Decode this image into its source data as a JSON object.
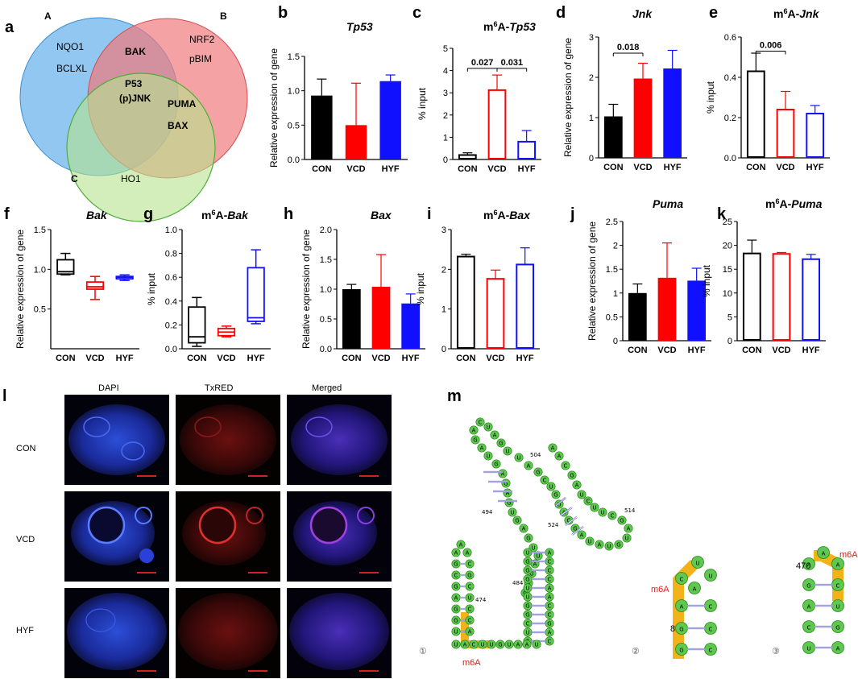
{
  "panel_letters": {
    "a": "a",
    "b": "b",
    "c": "c",
    "d": "d",
    "e": "e",
    "f": "f",
    "g": "g",
    "h": "h",
    "i": "i",
    "j": "j",
    "k": "k",
    "l": "l",
    "m": "m"
  },
  "venn": {
    "set_labels": {
      "A": "A",
      "B": "B",
      "C": "C"
    },
    "only_A": [
      "NQO1",
      "BCLXL"
    ],
    "only_B": [
      "NRF2",
      "pBIM"
    ],
    "A_and_B": "BAK",
    "A_B_C": [
      "P53",
      "(p)JNK"
    ],
    "B_and_C": [
      "PUMA",
      "BAX"
    ],
    "only_C": "HO1",
    "colors": {
      "A": "#6cb4ec",
      "B": "#f07a7e",
      "C": "#b6e28d"
    }
  },
  "group_colors": {
    "CON": "#000000",
    "VCD": "#ff0000",
    "HYF": "#1010ff"
  },
  "chart_data": [
    {
      "id": "b",
      "type": "bar",
      "title": "Tp53",
      "title_prefix": "",
      "ylabel": "Relative expression of gene",
      "categories": [
        "CON",
        "VCD",
        "HYF"
      ],
      "values": [
        0.93,
        0.5,
        1.14
      ],
      "errors": [
        0.24,
        0.61,
        0.09
      ],
      "filled": true,
      "ylim": [
        0,
        1.5
      ],
      "yticks": [
        0.0,
        0.5,
        1.0,
        1.5
      ],
      "sig": []
    },
    {
      "id": "c",
      "type": "bar",
      "title": "Tp53",
      "title_prefix": "m6A-",
      "ylabel": "% input",
      "categories": [
        "CON",
        "VCD",
        "HYF"
      ],
      "values": [
        0.2,
        3.12,
        0.8
      ],
      "errors": [
        0.1,
        0.68,
        0.5
      ],
      "filled": false,
      "ylim": [
        0,
        5
      ],
      "yticks": [
        0,
        1,
        2,
        3,
        4,
        5
      ],
      "sig": [
        {
          "from": 0,
          "to": 1,
          "text": "0.027"
        },
        {
          "from": 1,
          "to": 2,
          "text": "0.031"
        }
      ]
    },
    {
      "id": "d",
      "type": "bar",
      "title": "Jnk",
      "title_prefix": "",
      "ylabel": "Relative expression of gene",
      "categories": [
        "CON",
        "VCD",
        "HYF"
      ],
      "values": [
        1.03,
        1.97,
        2.22
      ],
      "errors": [
        0.3,
        0.38,
        0.45
      ],
      "filled": true,
      "ylim": [
        0,
        3
      ],
      "yticks": [
        0,
        1,
        2,
        3
      ],
      "sig": [
        {
          "from": 0,
          "to": 1,
          "text": "0.018"
        }
      ]
    },
    {
      "id": "e",
      "type": "bar",
      "title": "Jnk",
      "title_prefix": "m6A-",
      "ylabel": "% input",
      "categories": [
        "CON",
        "VCD",
        "HYF"
      ],
      "values": [
        0.43,
        0.24,
        0.22
      ],
      "errors": [
        0.09,
        0.09,
        0.04
      ],
      "filled": false,
      "ylim": [
        0,
        0.6
      ],
      "yticks": [
        0.0,
        0.2,
        0.4,
        0.6
      ],
      "sig": [
        {
          "from": 0,
          "to": 1,
          "text": "0.006"
        }
      ]
    },
    {
      "id": "f",
      "type": "box",
      "title": "Bak",
      "title_prefix": "",
      "ylabel": "Relative expression of gene",
      "categories": [
        "CON",
        "VCD",
        "HYF"
      ],
      "boxes": [
        {
          "min": 0.93,
          "q1": 0.94,
          "median": 0.97,
          "q3": 1.12,
          "max": 1.2
        },
        {
          "min": 0.62,
          "q1": 0.75,
          "median": 0.78,
          "q3": 0.84,
          "max": 0.91
        },
        {
          "min": 0.86,
          "q1": 0.88,
          "median": 0.9,
          "q3": 0.91,
          "max": 0.93
        }
      ],
      "ylim": [
        0.0,
        1.5
      ],
      "yticks": [
        0.5,
        1.0,
        1.5
      ],
      "sig": []
    },
    {
      "id": "g",
      "type": "box",
      "title": "Bak",
      "title_prefix": "m6A-",
      "ylabel": "% input",
      "categories": [
        "CON",
        "VCD",
        "HYF"
      ],
      "boxes": [
        {
          "min": 0.02,
          "q1": 0.05,
          "median": 0.1,
          "q3": 0.35,
          "max": 0.43
        },
        {
          "min": 0.1,
          "q1": 0.11,
          "median": 0.14,
          "q3": 0.17,
          "max": 0.19
        },
        {
          "min": 0.21,
          "q1": 0.23,
          "median": 0.26,
          "q3": 0.68,
          "max": 0.83
        }
      ],
      "ylim": [
        0,
        1.0
      ],
      "yticks": [
        0.0,
        0.2,
        0.4,
        0.6,
        0.8,
        1.0
      ],
      "sig": []
    },
    {
      "id": "h",
      "type": "bar",
      "title": "Bax",
      "title_prefix": "",
      "ylabel": "Relative expression of gene",
      "categories": [
        "CON",
        "VCD",
        "HYF"
      ],
      "values": [
        1.0,
        1.04,
        0.76
      ],
      "errors": [
        0.08,
        0.54,
        0.16
      ],
      "filled": true,
      "ylim": [
        0,
        2.0
      ],
      "yticks": [
        0.0,
        0.5,
        1.0,
        1.5,
        2.0
      ],
      "sig": []
    },
    {
      "id": "i",
      "type": "bar",
      "title": "Bax",
      "title_prefix": "m6A-",
      "ylabel": "% input",
      "categories": [
        "CON",
        "VCD",
        "HYF"
      ],
      "values": [
        2.32,
        1.76,
        2.12
      ],
      "errors": [
        0.06,
        0.22,
        0.42
      ],
      "filled": false,
      "ylim": [
        0,
        3
      ],
      "yticks": [
        0,
        1,
        2,
        3
      ],
      "sig": []
    },
    {
      "id": "j",
      "type": "bar",
      "title": "Puma",
      "title_prefix": "",
      "ylabel": "Relative expression of gene",
      "categories": [
        "CON",
        "VCD",
        "HYF"
      ],
      "values": [
        1.0,
        1.32,
        1.26
      ],
      "errors": [
        0.19,
        0.73,
        0.26
      ],
      "filled": true,
      "ylim": [
        0,
        2.5
      ],
      "yticks": [
        0.0,
        0.5,
        1.0,
        1.5,
        2.0,
        2.5
      ],
      "sig": []
    },
    {
      "id": "k",
      "type": "bar",
      "title": "Puma",
      "title_prefix": "m6A-",
      "ylabel": "% input",
      "categories": [
        "CON",
        "VCD",
        "HYF"
      ],
      "values": [
        18.3,
        18.2,
        17.1
      ],
      "errors": [
        2.8,
        0.3,
        1.0
      ],
      "filled": false,
      "ylim": [
        0,
        25
      ],
      "yticks": [
        0,
        5,
        10,
        15,
        20,
        25
      ],
      "sig": []
    }
  ],
  "micrographs": {
    "columns": [
      "DAPI",
      "TxRED",
      "Merged"
    ],
    "rows": [
      "CON",
      "VCD",
      "HYF"
    ]
  },
  "rna": {
    "labels": {
      "num494": "494",
      "num504": "504",
      "num514": "514",
      "num524": "524",
      "num484": "484",
      "num474": "474",
      "num8": "8",
      "num470": "470"
    },
    "m6a": "m6A",
    "circled": [
      "①",
      "②",
      "③"
    ],
    "loop_bases": [
      "C",
      "A",
      "G",
      "A",
      "U",
      "G",
      "A",
      "G",
      "A",
      "G",
      "U",
      "G",
      "A",
      "G",
      "U",
      "U",
      "A",
      "U",
      "A",
      "G",
      "U",
      "A",
      "G",
      "U",
      "U",
      "A",
      "G",
      "C",
      "U",
      "G",
      "U",
      "A",
      "C",
      "G",
      "A",
      "U",
      "A",
      "U",
      "G",
      "U",
      "A",
      "G",
      "C",
      "U",
      "U",
      "C",
      "U",
      "A",
      "G",
      "C",
      "A",
      "A"
    ]
  }
}
